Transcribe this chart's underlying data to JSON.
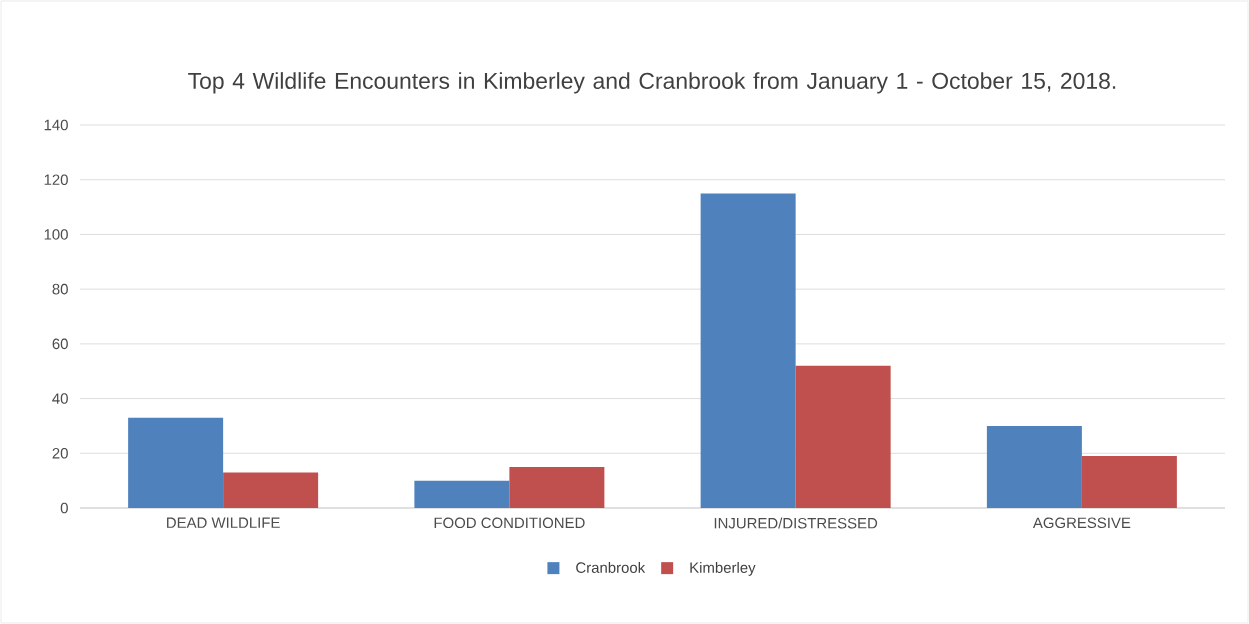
{
  "chart_data": {
    "type": "bar",
    "title": "Top 4 Wildlife Encounters in Kimberley and Cranbrook from January 1 - October 15, 2018.",
    "categories": [
      "DEAD WILDLIFE",
      "FOOD CONDITIONED",
      "INJURED/DISTRESSED",
      "AGGRESSIVE"
    ],
    "series": [
      {
        "name": "Cranbrook",
        "color": "#4f81bd",
        "values": [
          33,
          10,
          115,
          30
        ]
      },
      {
        "name": "Kimberley",
        "color": "#c0504d",
        "values": [
          13,
          15,
          52,
          19
        ]
      }
    ],
    "ylim": [
      0,
      140
    ],
    "yticks": [
      0,
      20,
      40,
      60,
      80,
      100,
      120,
      140
    ],
    "grid": "y",
    "legend": "bottom"
  }
}
